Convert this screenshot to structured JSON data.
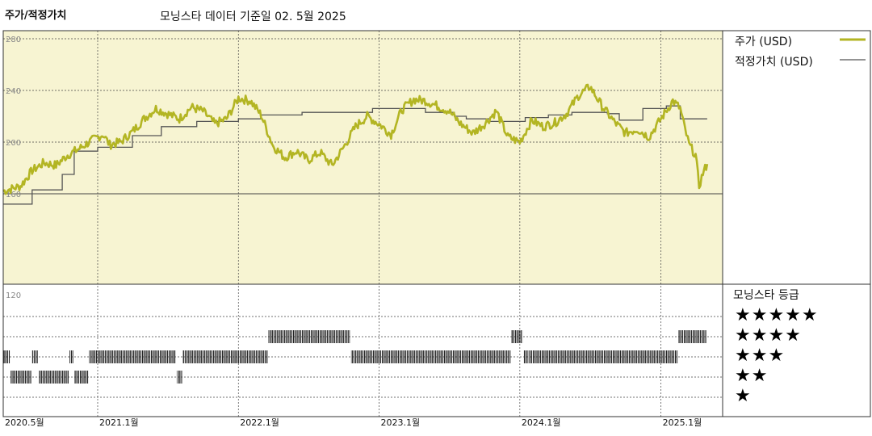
{
  "header": {
    "left_title": "주가/적정가치",
    "subtitle": "모닝스타 데이터 기준일 02. 5월 2025"
  },
  "legend": {
    "price_label": "주가 (USD)",
    "fair_label": "적정가치 (USD)",
    "rating_title": "모닝스타 등급",
    "stars": [
      "★★★★★",
      "★★★★",
      "★★★",
      "★★",
      "★"
    ]
  },
  "colors": {
    "price": "#b3b523",
    "fair": "#555555",
    "upper_bg": "#f7f4d2",
    "grid": "#444444",
    "rating": "#222222"
  },
  "chart_data": [
    {
      "type": "line",
      "title": "",
      "x_range": [
        "2020-05",
        "2025-05"
      ],
      "ylim": [
        140,
        280
      ],
      "y_ticks": [
        "280",
        "240",
        "200",
        "160"
      ],
      "x_ticks": [
        "2020.5월",
        "2021.1월",
        "2022.1월",
        "2023.1월",
        "2024.1월",
        "2025.1월"
      ],
      "series": [
        {
          "name": "주가 (USD)",
          "points": [
            [
              "2020-05-01",
              162
            ],
            [
              "2020-06-15",
              166
            ],
            [
              "2020-07-15",
              178
            ],
            [
              "2020-08-15",
              184
            ],
            [
              "2020-09-15",
              182
            ],
            [
              "2020-10-15",
              190
            ],
            [
              "2020-11-15",
              195
            ],
            [
              "2020-12-15",
              201
            ],
            [
              "2021-01-15",
              206
            ],
            [
              "2021-02-01",
              198
            ],
            [
              "2021-03-01",
              200
            ],
            [
              "2021-04-01",
              208
            ],
            [
              "2021-05-01",
              218
            ],
            [
              "2021-06-01",
              226
            ],
            [
              "2021-07-01",
              222
            ],
            [
              "2021-08-01",
              218
            ],
            [
              "2021-09-01",
              227
            ],
            [
              "2021-10-01",
              224
            ],
            [
              "2021-11-01",
              214
            ],
            [
              "2021-12-01",
              218
            ],
            [
              "2022-01-01",
              234
            ],
            [
              "2022-02-01",
              232
            ],
            [
              "2022-03-01",
              221
            ],
            [
              "2022-04-01",
              197
            ],
            [
              "2022-05-01",
              188
            ],
            [
              "2022-06-01",
              193
            ],
            [
              "2022-07-01",
              186
            ],
            [
              "2022-08-01",
              192
            ],
            [
              "2022-09-01",
              182
            ],
            [
              "2022-10-01",
              196
            ],
            [
              "2022-11-01",
              212
            ],
            [
              "2022-12-01",
              220
            ],
            [
              "2023-01-01",
              214
            ],
            [
              "2023-02-01",
              206
            ],
            [
              "2023-03-01",
              225
            ],
            [
              "2023-04-01",
              233
            ],
            [
              "2023-05-01",
              232
            ],
            [
              "2023-06-01",
              228
            ],
            [
              "2023-07-01",
              224
            ],
            [
              "2023-08-01",
              214
            ],
            [
              "2023-09-01",
              207
            ],
            [
              "2023-10-01",
              214
            ],
            [
              "2023-11-01",
              224
            ],
            [
              "2023-12-01",
              204
            ],
            [
              "2024-01-01",
              200
            ],
            [
              "2024-02-01",
              217
            ],
            [
              "2024-03-01",
              212
            ],
            [
              "2024-04-01",
              215
            ],
            [
              "2024-05-01",
              222
            ],
            [
              "2024-06-01",
              236
            ],
            [
              "2024-07-01",
              243
            ],
            [
              "2024-08-01",
              228
            ],
            [
              "2024-09-01",
              216
            ],
            [
              "2024-10-01",
              207
            ],
            [
              "2024-11-01",
              210
            ],
            [
              "2024-12-01",
              204
            ],
            [
              "2025-01-01",
              218
            ],
            [
              "2025-02-01",
              232
            ],
            [
              "2025-02-20",
              226
            ],
            [
              "2025-03-01",
              214
            ],
            [
              "2025-03-15",
              198
            ],
            [
              "2025-04-01",
              190
            ],
            [
              "2025-04-10",
              166
            ],
            [
              "2025-04-20",
              176
            ],
            [
              "2025-05-01",
              183
            ]
          ]
        },
        {
          "name": "적정가치 (USD)",
          "step": true,
          "points": [
            [
              "2020-05-01",
              152
            ],
            [
              "2020-07-15",
              163
            ],
            [
              "2020-10-01",
              175
            ],
            [
              "2020-11-01",
              193
            ],
            [
              "2021-01-01",
              196
            ],
            [
              "2021-04-01",
              205
            ],
            [
              "2021-06-15",
              212
            ],
            [
              "2021-09-15",
              216
            ],
            [
              "2022-01-01",
              218
            ],
            [
              "2022-03-01",
              221
            ],
            [
              "2022-06-15",
              223
            ],
            [
              "2022-12-15",
              226
            ],
            [
              "2023-05-01",
              223
            ],
            [
              "2023-07-15",
              220
            ],
            [
              "2023-08-15",
              218
            ],
            [
              "2023-10-15",
              216
            ],
            [
              "2024-01-15",
              219
            ],
            [
              "2024-03-15",
              221
            ],
            [
              "2024-05-15",
              223
            ],
            [
              "2024-08-15",
              222
            ],
            [
              "2024-09-15",
              217
            ],
            [
              "2024-11-15",
              226
            ],
            [
              "2025-01-15",
              228
            ],
            [
              "2025-02-20",
              218
            ],
            [
              "2025-05-01",
              218
            ]
          ]
        }
      ]
    },
    {
      "type": "heatmap",
      "title": "",
      "y_ticks": [
        "120"
      ],
      "categories": [
        "★★★★★",
        "★★★★",
        "★★★",
        "★★",
        "★"
      ],
      "series": [
        {
          "name": "모닝스타 등급",
          "periods": [
            [
              "2020-05-01",
              "2020-05-20",
              3
            ],
            [
              "2020-05-20",
              "2020-07-15",
              2
            ],
            [
              "2020-07-15",
              "2020-08-01",
              3
            ],
            [
              "2020-08-01",
              "2020-10-20",
              2
            ],
            [
              "2020-10-20",
              "2020-11-01",
              3
            ],
            [
              "2020-11-01",
              "2020-12-10",
              2
            ],
            [
              "2020-12-10",
              "2021-07-25",
              3
            ],
            [
              "2021-07-25",
              "2021-08-10",
              2
            ],
            [
              "2021-08-10",
              "2022-03-20",
              3
            ],
            [
              "2022-03-20",
              "2022-10-20",
              4
            ],
            [
              "2022-10-20",
              "2023-12-10",
              3
            ],
            [
              "2023-12-10",
              "2024-01-10",
              4
            ],
            [
              "2024-01-10",
              "2024-01-25",
              3
            ],
            [
              "2024-01-25",
              "2025-02-15",
              3
            ],
            [
              "2025-02-15",
              "2025-05-01",
              4
            ]
          ]
        }
      ]
    }
  ]
}
